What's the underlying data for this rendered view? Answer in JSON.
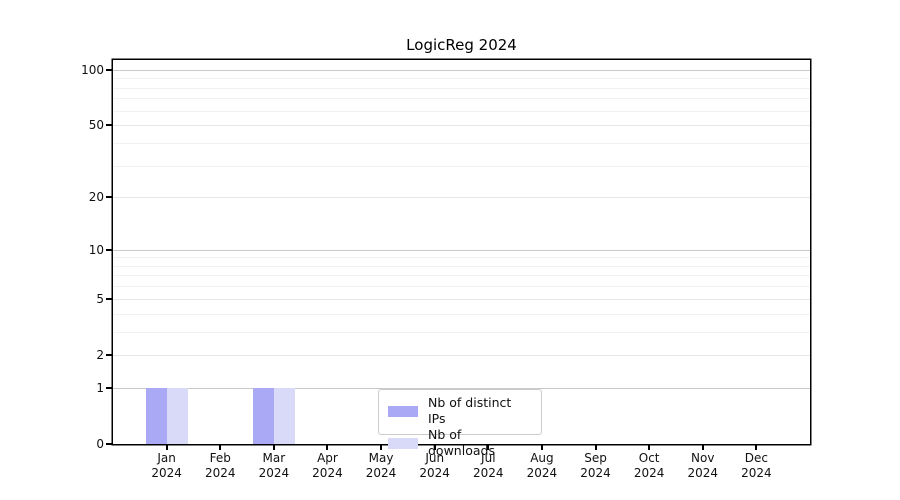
{
  "chart_data": {
    "type": "bar",
    "title": "LogicReg 2024",
    "categories": [
      "Jan",
      "Feb",
      "Mar",
      "Apr",
      "May",
      "Jun",
      "Jul",
      "Aug",
      "Sep",
      "Oct",
      "Nov",
      "Dec"
    ],
    "year": "2024",
    "series": [
      {
        "name": "Nb of distinct IPs",
        "color": "#a9a9f5",
        "values": [
          1,
          0,
          1,
          0,
          0,
          0,
          0,
          0,
          0,
          0,
          0,
          0
        ]
      },
      {
        "name": "Nb of downloads",
        "color": "#d9d9f8",
        "values": [
          1,
          0,
          1,
          0,
          0,
          0,
          0,
          0,
          0,
          0,
          0,
          0
        ]
      }
    ],
    "scale": "log1p",
    "ylim": [
      0,
      113
    ],
    "y_ticks": [
      0,
      1,
      2,
      5,
      10,
      20,
      50,
      100
    ],
    "y_minor_ticks": [
      3,
      4,
      6,
      7,
      8,
      9,
      30,
      40,
      60,
      70,
      80,
      90
    ],
    "grid": true,
    "legend_position": "bottom-center",
    "colors": {
      "grid_decade": "#c9c9c9",
      "grid_major": "#e7e7e7",
      "grid_minor": "#f2f2f2",
      "axis": "#000000",
      "text": "#111111"
    }
  }
}
